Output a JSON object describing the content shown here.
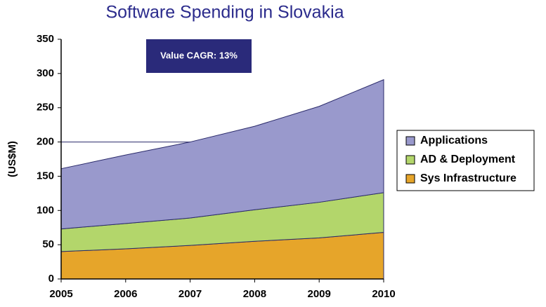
{
  "chart_data": {
    "type": "stacked_area",
    "title": "Software Spending in Slovakia",
    "y_label": "(US$M)",
    "annotation": "Value CAGR: 13%",
    "x": [
      2005,
      2006,
      2007,
      2008,
      2009,
      2010
    ],
    "xlim": [
      2005,
      2010
    ],
    "xticks": [
      2005,
      2006,
      2007,
      2008,
      2009,
      2010
    ],
    "ylim": [
      0,
      350
    ],
    "yticks": [
      0,
      50,
      100,
      150,
      200,
      250,
      300,
      350
    ],
    "hlines": [
      200
    ],
    "legend": "right",
    "series": [
      {
        "name": "Sys Infrastructure",
        "color": "#e6a52a",
        "values": [
          40,
          44,
          49,
          55,
          60,
          68
        ]
      },
      {
        "name": "AD & Deployment",
        "color": "#b3d66b",
        "values": [
          33,
          37,
          40,
          46,
          52,
          58
        ]
      },
      {
        "name": "Applications",
        "color": "#9999cc",
        "values": [
          88,
          100,
          111,
          122,
          140,
          165
        ]
      }
    ]
  }
}
